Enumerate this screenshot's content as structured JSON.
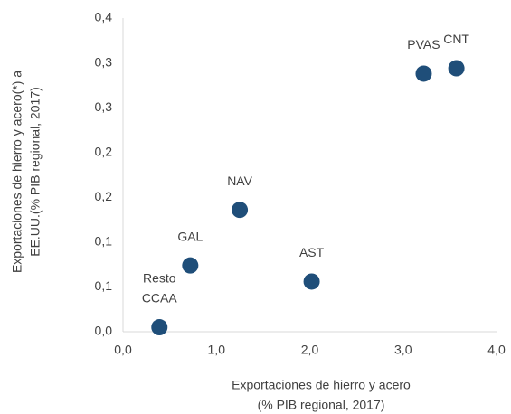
{
  "chart_data": {
    "type": "scatter",
    "xlabel": [
      "Exportaciones de  hierro y acero",
      "(% PIB regional, 2017)"
    ],
    "ylabel": [
      "Exportaciones de hierro y acero(*) a",
      "EE.UU.(% PIB regional, 2017)"
    ],
    "labels": [
      [
        "Resto",
        "CCAA"
      ],
      [
        "GAL"
      ],
      [
        "NAV"
      ],
      [
        "AST"
      ],
      [
        "PVAS"
      ],
      [
        "CNT"
      ]
    ],
    "x": [
      0.39,
      0.72,
      1.25,
      2.02,
      3.22,
      3.57
    ],
    "values": [
      0.005,
      0.074,
      0.136,
      0.056,
      0.288,
      0.294
    ],
    "color": "#1f4e79",
    "xlim": [
      0,
      4
    ],
    "xticks": [
      {
        "value": 0,
        "label": "0,0"
      },
      {
        "value": 1,
        "label": "1,0"
      },
      {
        "value": 2,
        "label": "2,0"
      },
      {
        "value": 3,
        "label": "3,0"
      },
      {
        "value": 4,
        "label": "4,0"
      }
    ],
    "ylim": [
      0,
      0.35
    ],
    "yticks": [
      {
        "value": 0,
        "label": "0,0"
      },
      {
        "value": 0.05,
        "label": "0,1"
      },
      {
        "value": 0.1,
        "label": "0,1"
      },
      {
        "value": 0.15,
        "label": "0,2"
      },
      {
        "value": 0.2,
        "label": "0,2"
      },
      {
        "value": 0.25,
        "label": "0,3"
      },
      {
        "value": 0.3,
        "label": "0,3"
      },
      {
        "value": 0.35,
        "label": "0,4"
      }
    ],
    "grid": false
  }
}
